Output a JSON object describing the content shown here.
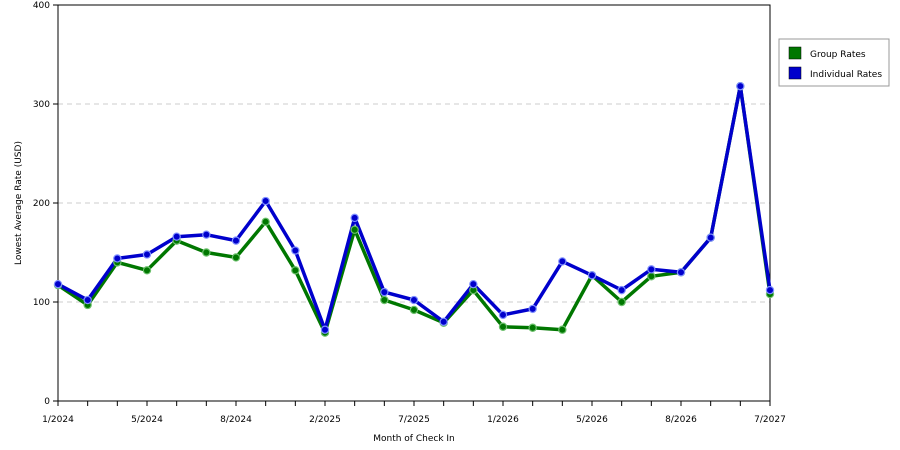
{
  "chart_data": {
    "type": "line",
    "title": "",
    "xlabel": "Month of Check In",
    "ylabel": "Lowest Average Rate (USD)",
    "ylim": [
      0,
      400
    ],
    "yticks": [
      0,
      100,
      200,
      300,
      400
    ],
    "grid": "horizontal dashed",
    "legend_position": "right",
    "x_tick_labels": [
      "1/2024",
      "5/2024",
      "8/2024",
      "2/2025",
      "7/2025",
      "1/2026",
      "5/2026",
      "8/2026",
      "7/2027"
    ],
    "x_tick_index": [
      0,
      3,
      6,
      9,
      12,
      15,
      18,
      21,
      24
    ],
    "series": [
      {
        "name": "Group Rates",
        "color": "#007700",
        "values": [
          117,
          97,
          140,
          132,
          162,
          150,
          145,
          181,
          132,
          69,
          173,
          102,
          92,
          79,
          112,
          75,
          74,
          72,
          127,
          100,
          126,
          130,
          165,
          318,
          108
        ]
      },
      {
        "name": "Individual Rates",
        "color": "#0000cc",
        "values": [
          118,
          102,
          144,
          148,
          166,
          168,
          162,
          202,
          152,
          72,
          185,
          110,
          102,
          80,
          118,
          87,
          93,
          141,
          127,
          112,
          133,
          130,
          165,
          318,
          112
        ]
      }
    ]
  }
}
